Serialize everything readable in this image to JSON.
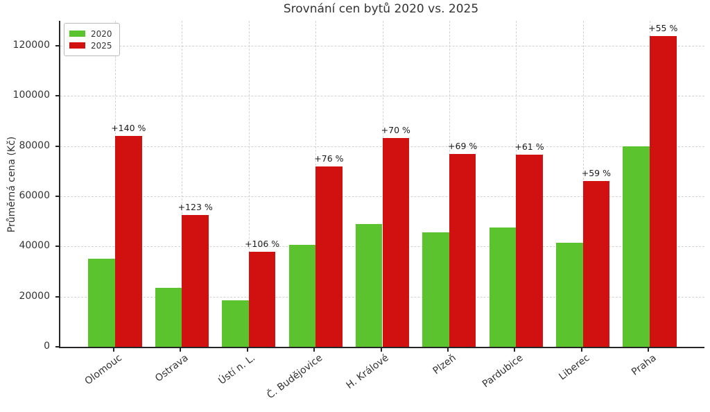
{
  "chart_data": {
    "type": "bar",
    "title": "Srovnání cen bytů 2020 vs. 2025",
    "ylabel": "Průměrná cena (Kč)",
    "xlabel": "",
    "categories": [
      "Olomouc",
      "Ostrava",
      "Ústí n. L.",
      "Č. Budějovice",
      "H. Králové",
      "Plzeň",
      "Pardubice",
      "Liberec",
      "Praha"
    ],
    "series": [
      {
        "name": "2020",
        "color": "#5ac32d",
        "values": [
          35000,
          23600,
          18400,
          40800,
          49000,
          45600,
          47500,
          41500,
          80000
        ]
      },
      {
        "name": "2025",
        "color": "#d01110",
        "values": [
          84000,
          52600,
          37900,
          71800,
          83300,
          77000,
          76500,
          66000,
          124000
        ]
      }
    ],
    "bar_annotations": [
      "+140 %",
      "+123 %",
      "+106 %",
      "+76 %",
      "+70 %",
      "+69 %",
      "+61 %",
      "+59 %",
      "+55 %"
    ],
    "yticks": [
      0,
      20000,
      40000,
      60000,
      80000,
      100000,
      120000
    ],
    "ytick_labels": [
      "0",
      "20000",
      "40000",
      "60000",
      "80000",
      "100000",
      "120000"
    ],
    "ylim": [
      0,
      130000
    ],
    "grid": {
      "horizontal": true,
      "vertical": true,
      "style": "dashed",
      "color": "#d2d2d2"
    },
    "legend": {
      "position": "upper left",
      "entries": [
        "2020",
        "2025"
      ]
    },
    "colors": {
      "text": "#333333",
      "spine": "#262626",
      "background": "#ffffff"
    }
  }
}
